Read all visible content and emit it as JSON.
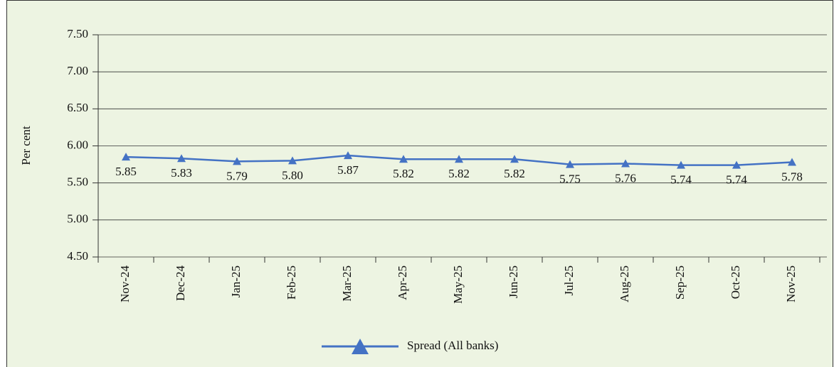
{
  "chart_data": {
    "type": "line",
    "y_label": "Per cent",
    "categories": [
      "Nov-24",
      "Dec-24",
      "Jan-25",
      "Feb-25",
      "Mar-25",
      "Apr-25",
      "May-25",
      "Jun-25",
      "Jul-25",
      "Aug-25",
      "Sep-25",
      "Oct-25",
      "Nov-25"
    ],
    "series": [
      {
        "name": "Spread (All banks)",
        "color": "#4472c4",
        "values": [
          5.85,
          5.83,
          5.79,
          5.8,
          5.87,
          5.82,
          5.82,
          5.82,
          5.75,
          5.76,
          5.74,
          5.74,
          5.78
        ],
        "value_labels": [
          "5.85",
          "5.83",
          "5.79",
          "5.80",
          "5.87",
          "5.82",
          "5.82",
          "5.82",
          "5.75",
          "5.76",
          "5.74",
          "5.74",
          "5.78"
        ]
      }
    ],
    "ylim": [
      4.5,
      7.5
    ],
    "yticks": [
      {
        "value": 4.5,
        "label": "4.50"
      },
      {
        "value": 5,
        "label": "5.00"
      },
      {
        "value": 5.5,
        "label": "5.50"
      },
      {
        "value": 6,
        "label": "6.00"
      },
      {
        "value": 6.5,
        "label": "6.50"
      },
      {
        "value": 7,
        "label": "7.00"
      },
      {
        "value": 7.5,
        "label": "7.50"
      }
    ],
    "grid": true,
    "legend": "bottom",
    "background": "#edf4e2"
  }
}
